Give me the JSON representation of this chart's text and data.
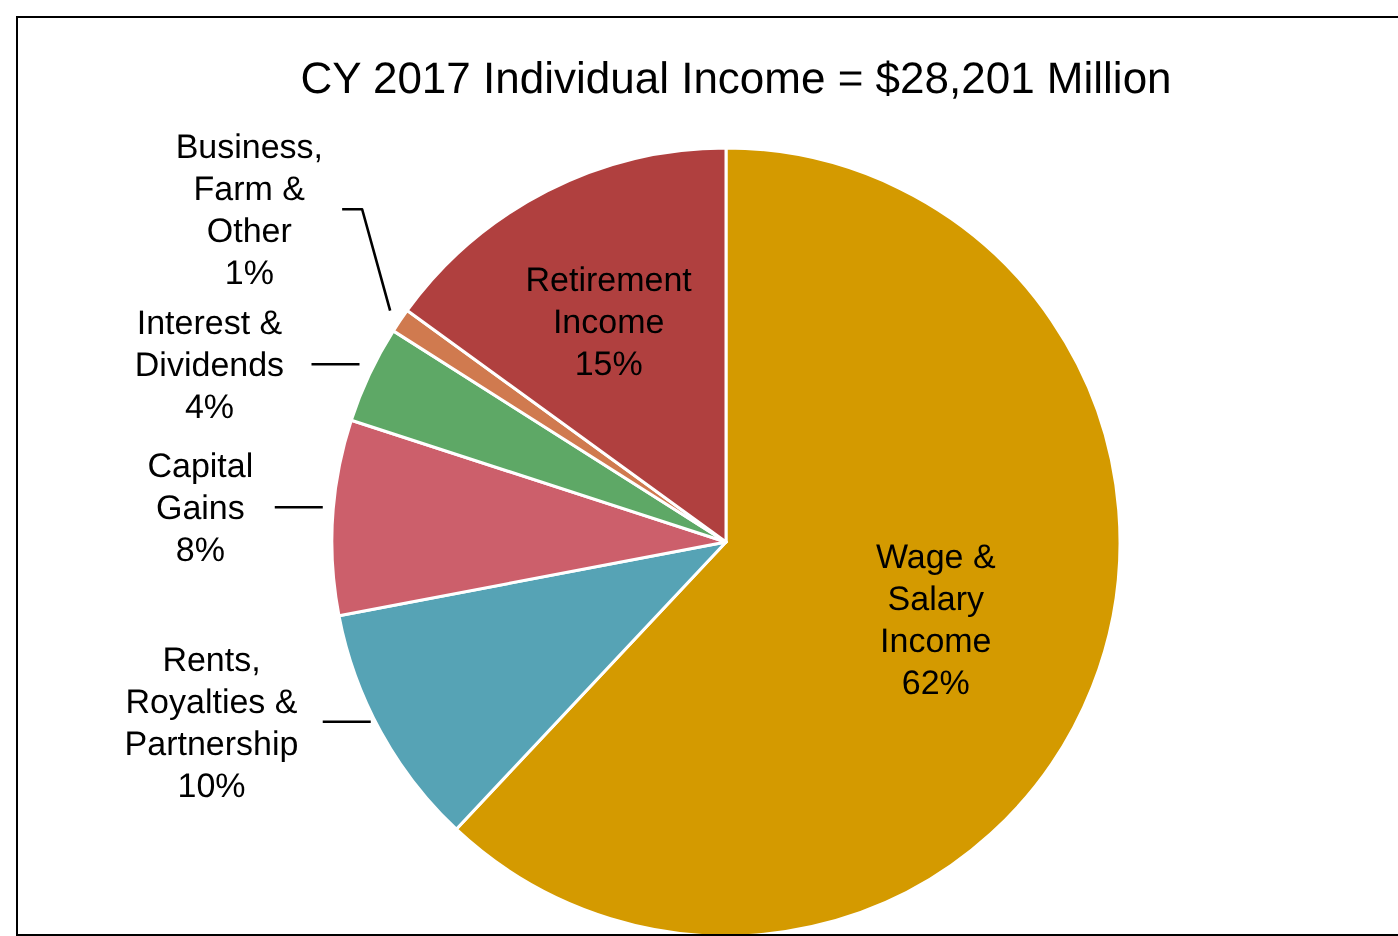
{
  "chart_data": {
    "type": "pie",
    "title": "CY 2017 Individual  Income  = $28,201 Million",
    "categories": [
      "Wage &\nSalary\nIncome",
      "Rents,\nRoyalties &\nPartnership",
      "Capital\nGains",
      "Interest &\nDividends",
      "Business,\nFarm &\nOther",
      "Retirement\nIncome"
    ],
    "values": [
      62,
      10,
      8,
      4,
      1,
      15
    ],
    "value_labels": [
      "62%",
      "10%",
      "8%",
      "4%",
      "1%",
      "15%"
    ],
    "colors": [
      "#d49a00",
      "#56a3b5",
      "#cc5f6b",
      "#5ea866",
      "#d07a4f",
      "#b0403f"
    ],
    "legend": false
  }
}
